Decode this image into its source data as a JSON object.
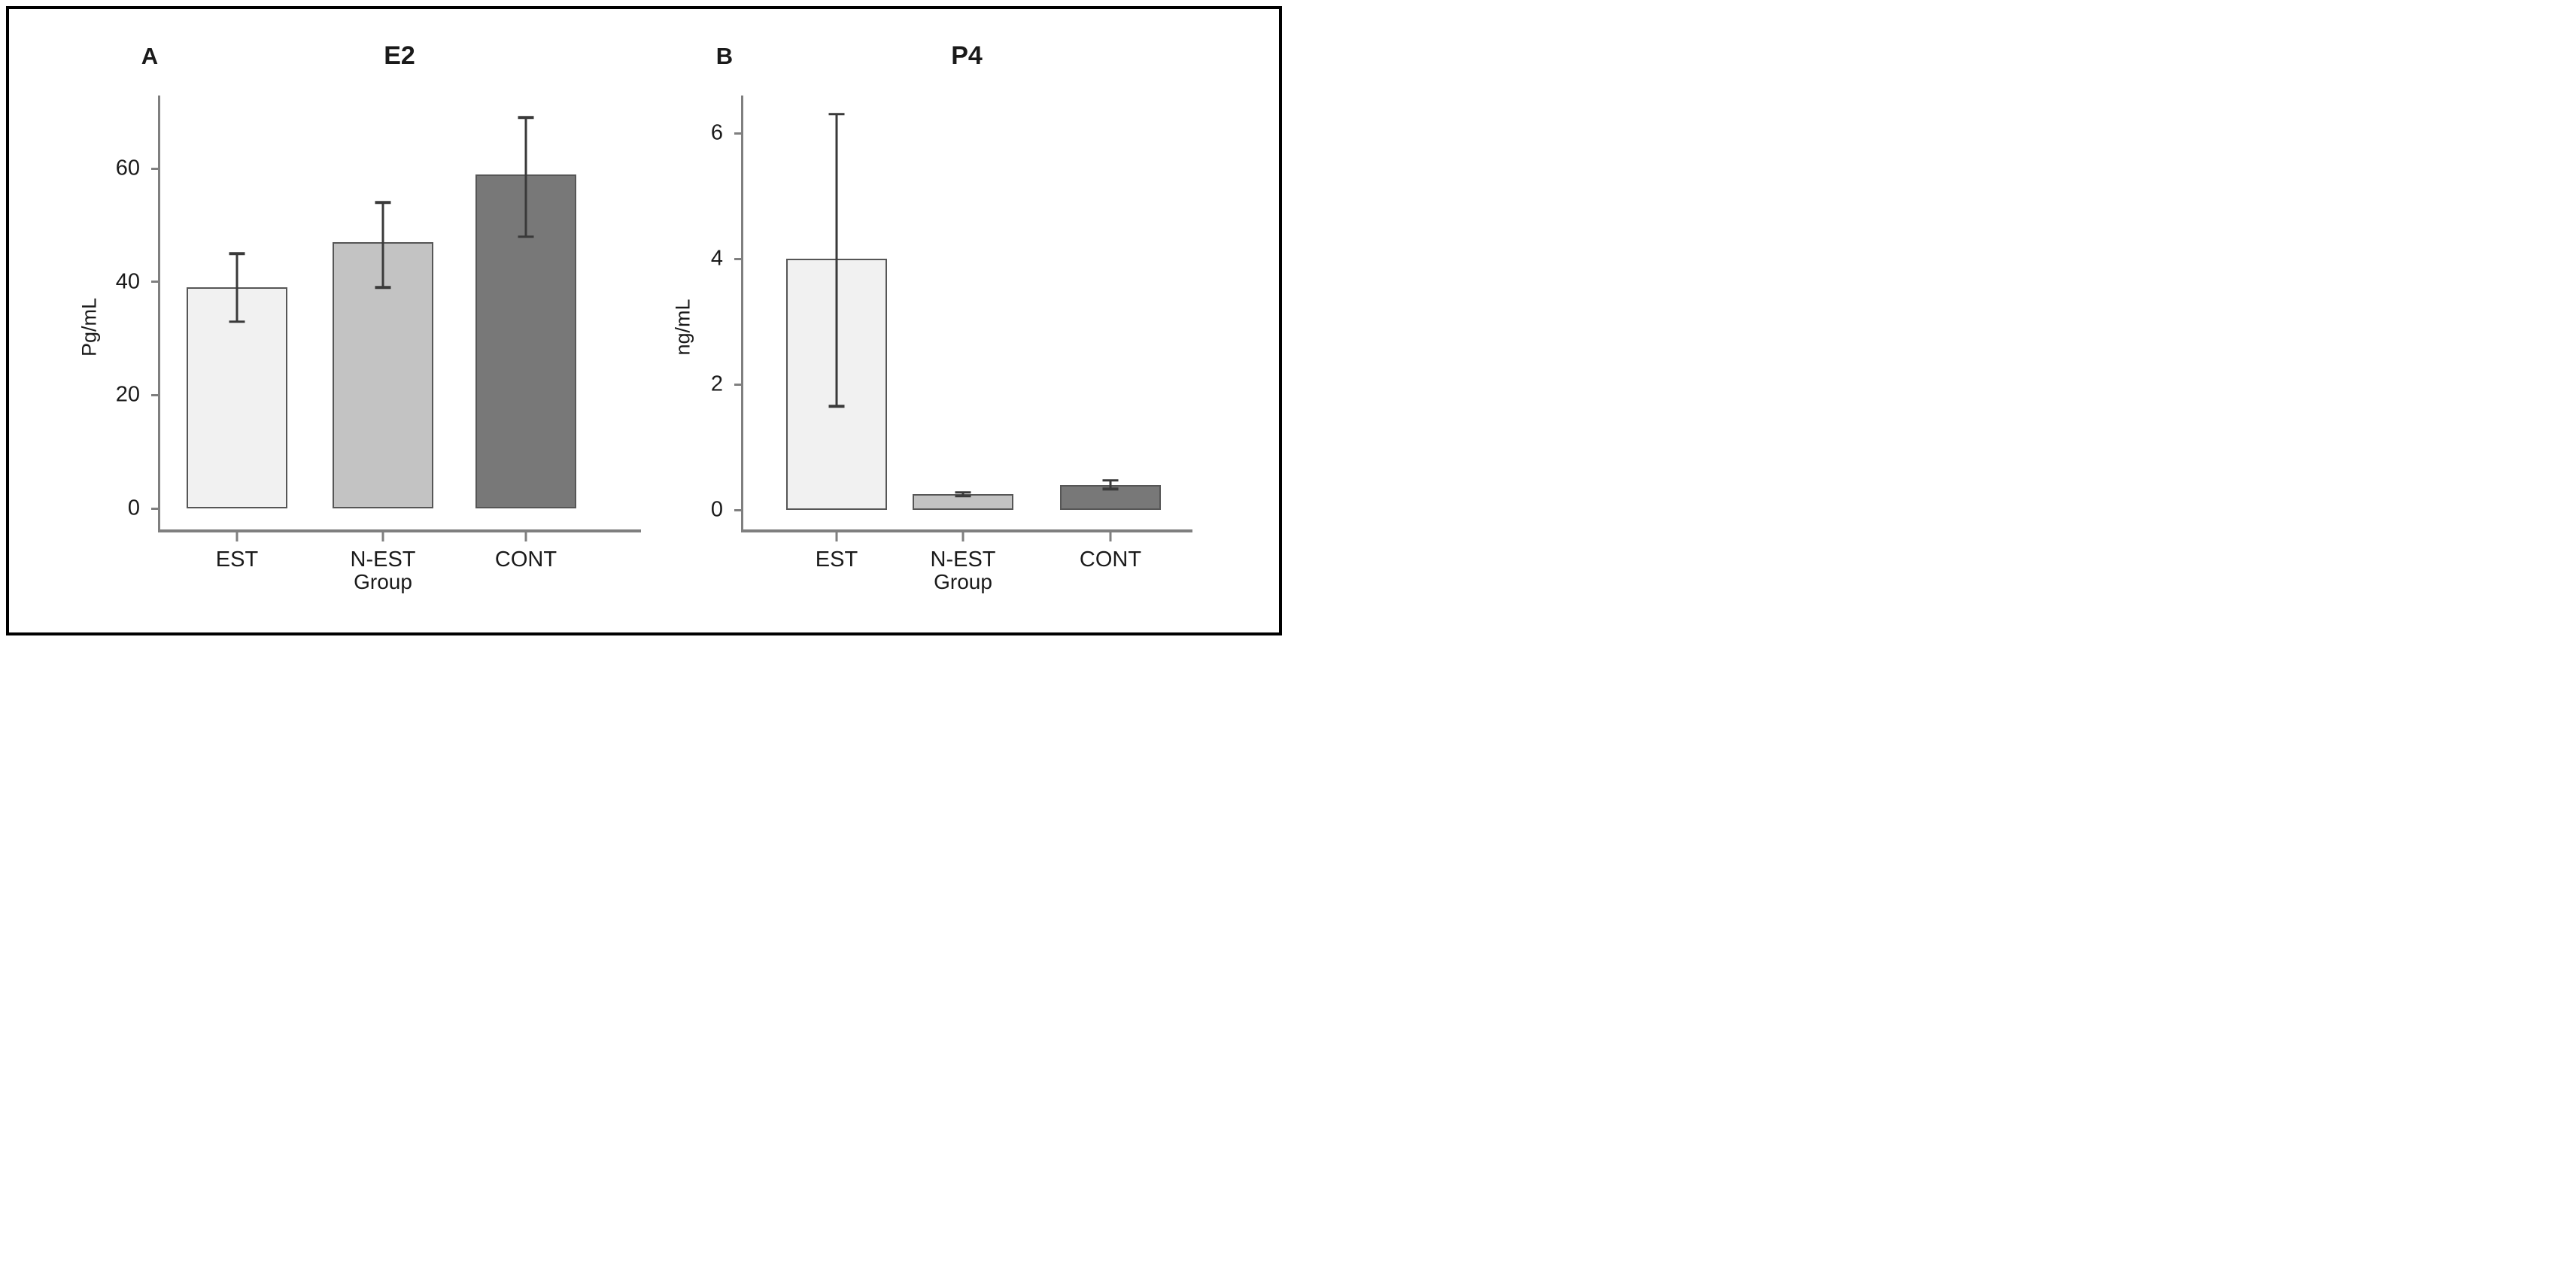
{
  "figure_title": "",
  "chart_data": [
    {
      "type": "bar",
      "panel_label": "A",
      "title": "E2",
      "ylabel": "Pg/mL",
      "xlabel": "Group",
      "categories": [
        "EST",
        "N-EST",
        "CONT"
      ],
      "values": [
        39,
        47,
        59
      ],
      "error_low": [
        33,
        39,
        48
      ],
      "error_high": [
        45,
        54,
        69
      ],
      "yticks": [
        0,
        20,
        40,
        60
      ],
      "ylim": [
        -3.7,
        72.9
      ],
      "grid": false,
      "legend": false,
      "bar_colors": [
        "#f1f1f1",
        "#c3c3c3",
        "#787878"
      ],
      "bar_border_color": "#565656",
      "error_bar_color": "#3a3a3a",
      "axis_color": "#7f7f7f"
    },
    {
      "type": "bar",
      "panel_label": "B",
      "title": "P4",
      "ylabel": "ng/mL",
      "xlabel": "Group",
      "categories": [
        "EST",
        "N-EST",
        "CONT"
      ],
      "values": [
        4.0,
        0.25,
        0.4
      ],
      "error_low": [
        1.65,
        0.22,
        0.33
      ],
      "error_high": [
        6.3,
        0.28,
        0.47
      ],
      "yticks": [
        0,
        2,
        4,
        6
      ],
      "ylim": [
        -0.31,
        6.6
      ],
      "grid": false,
      "legend": false,
      "bar_colors": [
        "#f1f1f1",
        "#c3c3c3",
        "#787878"
      ],
      "bar_border_color": "#565656",
      "error_bar_color": "#3a3a3a",
      "axis_color": "#7f7f7f"
    }
  ]
}
